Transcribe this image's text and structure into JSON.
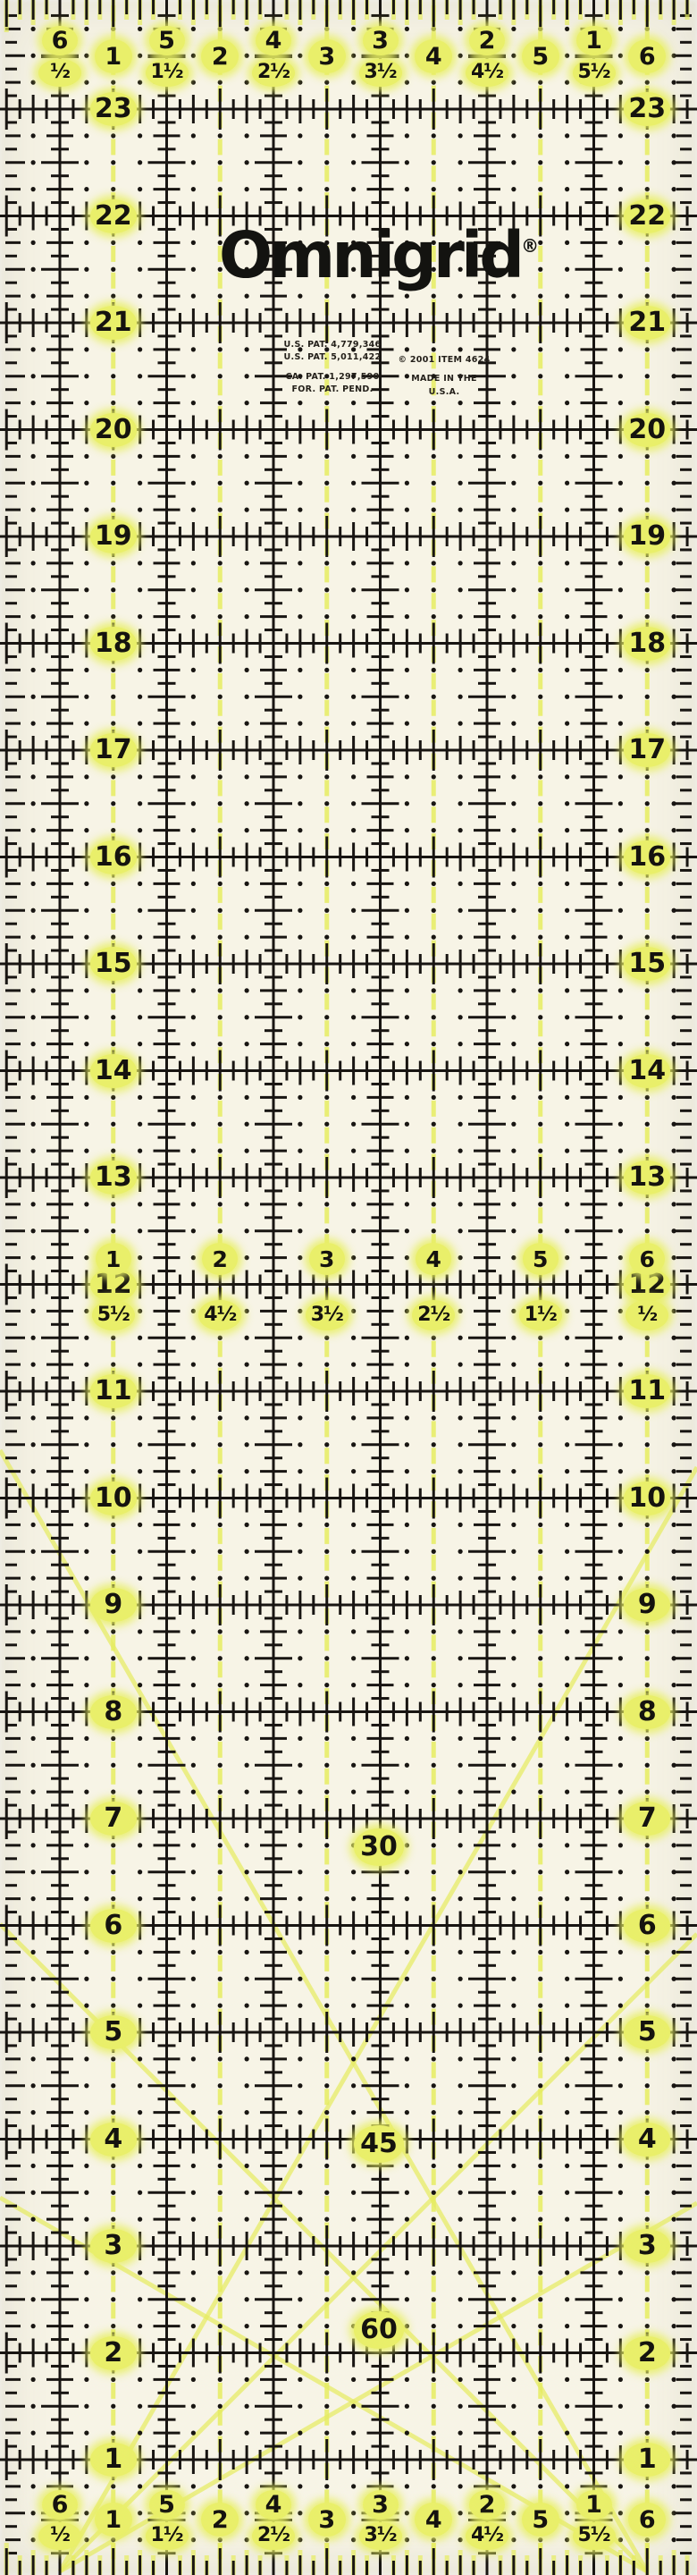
{
  "colors": {
    "background": "#f7f4e6",
    "ink": "#181512",
    "highlight": "#e6ec60",
    "blob": "#e9ef6a"
  },
  "brand": {
    "logo": "Omnigrid",
    "registered_mark": "®"
  },
  "legal": {
    "patent_lines": [
      "U.S. PAT. 4,779,346",
      "U.S. PAT. 5,011,422",
      "CA. PAT. 1,297,590",
      "FOR. PAT. PEND."
    ],
    "copyright_item": "© 2001   ITEM 4624",
    "made_in_lines": [
      "MADE IN THE",
      "U.S.A."
    ]
  },
  "scales": {
    "left_edge": [
      "23",
      "22",
      "21",
      "20",
      "19",
      "18",
      "17",
      "16",
      "15",
      "14",
      "13",
      "12",
      "11",
      "10",
      "9",
      "8",
      "7",
      "6",
      "5",
      "4",
      "3",
      "2",
      "1"
    ],
    "right_edge": [
      "23",
      "22",
      "21",
      "20",
      "19",
      "18",
      "17",
      "16",
      "15",
      "14",
      "13",
      "12",
      "11",
      "10",
      "9",
      "8",
      "7",
      "6",
      "5",
      "4",
      "3",
      "2",
      "1"
    ],
    "top": {
      "pairs": [
        [
          "6",
          "½"
        ],
        [
          "5",
          "1½"
        ],
        [
          "4",
          "2½"
        ],
        [
          "3",
          "3½"
        ],
        [
          "2",
          "4½"
        ],
        [
          "1",
          "5½"
        ]
      ],
      "units": [
        "1",
        "2",
        "3",
        "4",
        "5",
        "6"
      ]
    },
    "bottom": {
      "pairs": [
        [
          "6",
          "½"
        ],
        [
          "5",
          "1½"
        ],
        [
          "4",
          "2½"
        ],
        [
          "3",
          "3½"
        ],
        [
          "2",
          "4½"
        ],
        [
          "1",
          "5½"
        ]
      ],
      "units": [
        "1",
        "2",
        "3",
        "4",
        "5",
        "6"
      ]
    },
    "middle": {
      "units": [
        "1",
        "2",
        "3",
        "4",
        "5",
        "6"
      ],
      "fractions": [
        "5½",
        "4½",
        "3½",
        "2½",
        "1½",
        "½"
      ]
    }
  },
  "angle_labels": [
    "30",
    "45",
    "60"
  ]
}
